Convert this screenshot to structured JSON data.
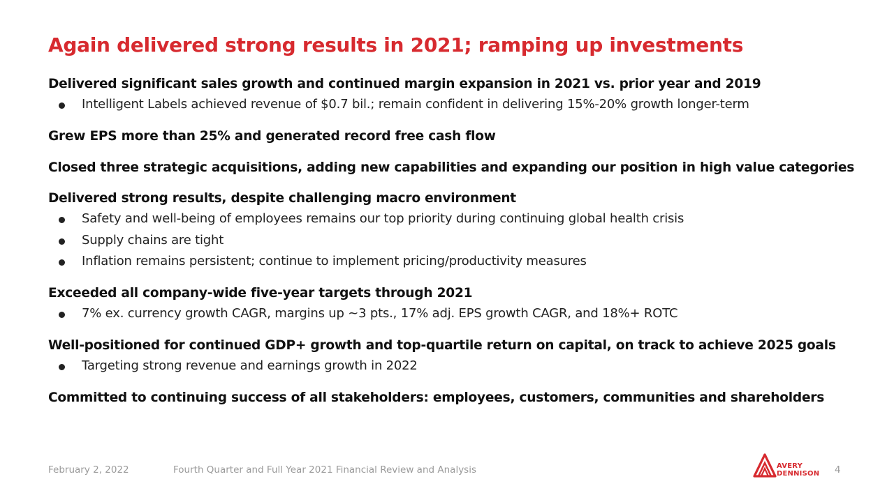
{
  "title": "Again delivered strong results in 2021; ramping up investments",
  "sections": [
    {
      "heading": "Delivered significant sales growth and continued margin expansion in 2021 vs. prior year and 2019",
      "bullets": [
        "Intelligent Labels achieved revenue of $0.7 bil.; remain confident in delivering 15%-20% growth longer-term"
      ]
    },
    {
      "heading": "Grew EPS more than 25% and generated record free cash flow",
      "bullets": []
    },
    {
      "heading": "Closed three strategic acquisitions, adding new capabilities and expanding our position in high value categories",
      "bullets": []
    },
    {
      "heading": "Delivered strong results, despite challenging macro environment",
      "bullets": [
        "Safety and well-being of employees remains our top priority during continuing global health crisis",
        "Supply chains are tight",
        "Inflation remains persistent; continue to implement pricing/productivity measures"
      ]
    },
    {
      "heading": "Exceeded all company-wide five-year targets through 2021",
      "bullets": [
        "7% ex. currency growth CAGR, margins up ~3 pts., 17% adj. EPS growth CAGR, and 18%+ ROTC"
      ]
    },
    {
      "heading": "Well-positioned for continued GDP+ growth and top-quartile return on capital, on track to achieve 2025 goals",
      "bullets": [
        "Targeting strong revenue and earnings growth in 2022"
      ]
    },
    {
      "heading": "Committed to continuing success of all stakeholders: employees, customers, communities and shareholders",
      "bullets": []
    }
  ],
  "footer": {
    "date": "February 2, 2022",
    "subtitle": "Fourth Quarter and Full Year 2021 Financial Review and Analysis",
    "page_number": "4",
    "logo_line1": "AVERY",
    "logo_line2": "DENNISON",
    "logo_icon": "avery-dennison-logo-icon"
  },
  "colors": {
    "accent": "#d72a2f",
    "text": "#111111",
    "footer": "#9a9a9a"
  }
}
